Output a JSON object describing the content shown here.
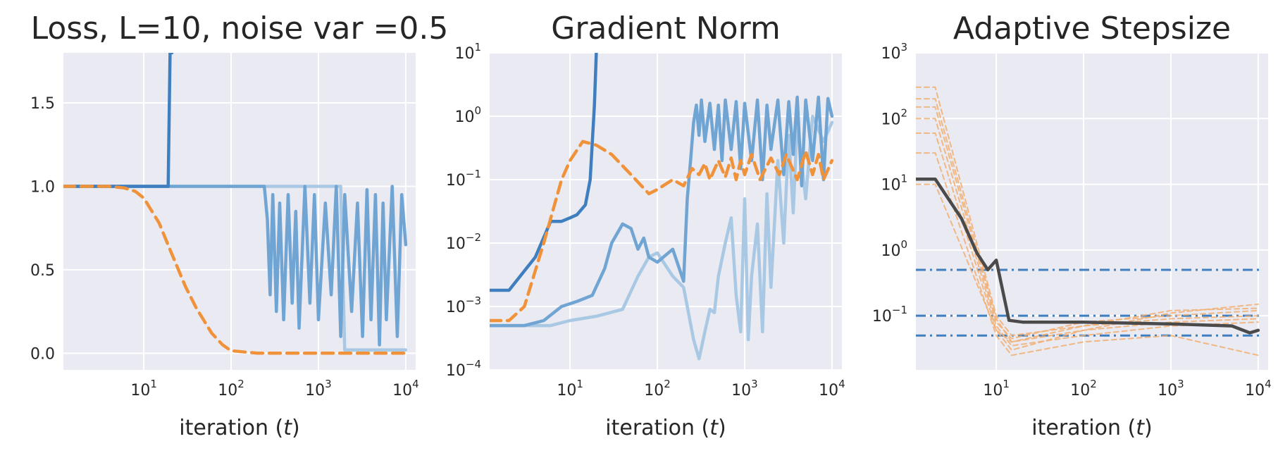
{
  "palette": {
    "background": "#EAEAF2",
    "grid": "#FFFFFF",
    "blue_dark": "#3F7FBF",
    "blue_mid": "#6FA4D3",
    "blue_light": "#A9C8E4",
    "orange": "#F0923A",
    "orange_light": "#F2AE70",
    "gray": "#4A4A4A"
  },
  "chart_data": [
    {
      "id": "loss",
      "type": "line",
      "title": "Loss, L=10, noise var =0.5",
      "xlabel": "iteration (t)",
      "xlabel_main": "iteration (",
      "xlabel_var": "t",
      "xlabel_end": ")",
      "xscale": "log",
      "yscale": "linear",
      "xlim": [
        1.2,
        13000
      ],
      "ylim": [
        -0.1,
        1.8
      ],
      "xticks": [
        {
          "base": "10",
          "exp": "1"
        },
        {
          "base": "10",
          "exp": "2"
        },
        {
          "base": "10",
          "exp": "3"
        },
        {
          "base": "10",
          "exp": "4"
        }
      ],
      "yticks": [
        "0.0",
        "0.5",
        "1.0",
        "1.5"
      ],
      "grid": true,
      "series": [
        {
          "style": "solid",
          "color_key": "blue_light",
          "x": [
            1.2,
            2,
            10,
            100,
            1000,
            1800,
            2000,
            2200,
            3000,
            5000,
            9000,
            10000
          ],
          "y": [
            1.0,
            1.0,
            1.0,
            1.0,
            1.0,
            1.0,
            0.02,
            0.02,
            0.02,
            0.02,
            0.02,
            0.02
          ]
        },
        {
          "style": "solid",
          "color_key": "blue_mid",
          "x": [
            1.2,
            10,
            100,
            200,
            240,
            260,
            280,
            300,
            330,
            360,
            400,
            450,
            500,
            550,
            600,
            700,
            800,
            900,
            1000,
            1200,
            1400,
            1600,
            1800,
            2000,
            2400,
            2800,
            3200,
            3600,
            4000,
            4500,
            5000,
            5500,
            6000,
            7000,
            8000,
            9000,
            10000
          ],
          "y": [
            1.0,
            1.0,
            1.0,
            1.0,
            1.0,
            0.8,
            0.35,
            0.95,
            0.25,
            0.9,
            0.2,
            0.95,
            0.3,
            0.85,
            0.15,
            1.0,
            0.3,
            0.95,
            0.2,
            0.9,
            0.35,
            1.0,
            0.1,
            0.95,
            0.25,
            0.9,
            0.1,
            0.98,
            0.2,
            0.95,
            0.05,
            0.9,
            0.2,
            1.0,
            0.1,
            0.95,
            0.65
          ]
        },
        {
          "style": "solid",
          "color_key": "blue_dark",
          "x": [
            1.2,
            5,
            10,
            17,
            19,
            20,
            21
          ],
          "y": [
            1.0,
            1.0,
            1.0,
            1.0,
            1.0,
            1.8,
            1.8
          ]
        },
        {
          "style": "dashed",
          "color_key": "orange",
          "x": [
            1.2,
            4,
            6,
            8,
            10,
            15,
            20,
            30,
            40,
            60,
            80,
            100,
            200,
            1000,
            10000
          ],
          "y": [
            1.0,
            1.0,
            0.99,
            0.97,
            0.93,
            0.78,
            0.62,
            0.4,
            0.27,
            0.12,
            0.05,
            0.015,
            0.0,
            0.0,
            0.0
          ]
        }
      ]
    },
    {
      "id": "gradnorm",
      "type": "line",
      "title": "Gradient Norm",
      "xlabel": "iteration (t)",
      "xlabel_main": "iteration (",
      "xlabel_var": "t",
      "xlabel_end": ")",
      "xscale": "log",
      "yscale": "log",
      "xlim": [
        1.2,
        13000
      ],
      "ylim": [
        0.0001,
        10
      ],
      "xticks": [
        {
          "base": "10",
          "exp": "1"
        },
        {
          "base": "10",
          "exp": "2"
        },
        {
          "base": "10",
          "exp": "3"
        },
        {
          "base": "10",
          "exp": "4"
        }
      ],
      "yticks": [
        {
          "base": "10",
          "exp": "−4"
        },
        {
          "base": "10",
          "exp": "−3"
        },
        {
          "base": "10",
          "exp": "−2"
        },
        {
          "base": "10",
          "exp": "−1"
        },
        {
          "base": "10",
          "exp": "0"
        },
        {
          "base": "10",
          "exp": "1"
        }
      ],
      "grid": true,
      "series": [
        {
          "style": "solid",
          "color_key": "blue_light",
          "x": [
            1.2,
            3,
            6,
            10,
            20,
            40,
            60,
            80,
            100,
            150,
            200,
            260,
            300,
            350,
            400,
            450,
            500,
            600,
            700,
            800,
            900,
            1000,
            1100,
            1200,
            1400,
            1600,
            1800,
            2000,
            2400,
            2800,
            3200,
            3600,
            4000,
            5000,
            6000,
            8000,
            10000
          ],
          "y": [
            0.0005,
            0.0005,
            0.0005,
            0.0006,
            0.0007,
            0.0009,
            0.003,
            0.006,
            0.007,
            0.003,
            0.002,
            0.0003,
            0.00015,
            0.0004,
            0.0009,
            0.0008,
            0.003,
            0.01,
            0.025,
            0.0015,
            0.0004,
            0.05,
            0.0003,
            0.003,
            0.02,
            0.0004,
            0.06,
            0.002,
            0.2,
            0.01,
            0.5,
            0.03,
            0.8,
            0.05,
            1.0,
            0.4,
            0.8
          ]
        },
        {
          "style": "solid",
          "color_key": "blue_mid",
          "x": [
            1.2,
            3,
            5,
            8,
            12,
            18,
            25,
            30,
            40,
            50,
            60,
            70,
            80,
            100,
            150,
            200,
            220,
            240,
            260,
            280,
            300,
            320,
            350,
            400,
            450,
            500,
            550,
            600,
            700,
            800,
            900,
            1000,
            1200,
            1400,
            1600,
            1800,
            2000,
            2400,
            2800,
            3200,
            3600,
            4000,
            4500,
            5000,
            6000,
            7000,
            8000,
            9000,
            10000
          ],
          "y": [
            0.0005,
            0.0005,
            0.0006,
            0.001,
            0.0012,
            0.0015,
            0.004,
            0.01,
            0.02,
            0.017,
            0.008,
            0.012,
            0.006,
            0.005,
            0.008,
            0.0025,
            0.05,
            0.2,
            0.8,
            1.5,
            0.5,
            1.8,
            0.4,
            1.6,
            0.3,
            1.5,
            0.2,
            1.8,
            0.3,
            1.7,
            0.15,
            1.6,
            0.2,
            1.8,
            0.1,
            1.5,
            0.3,
            1.8,
            0.12,
            1.7,
            0.25,
            2.0,
            0.08,
            1.8,
            0.2,
            2.0,
            0.1,
            1.9,
            1.0
          ]
        },
        {
          "style": "solid",
          "color_key": "blue_dark",
          "x": [
            1.2,
            2,
            4,
            6,
            8,
            10,
            12,
            15,
            17,
            19,
            20,
            21
          ],
          "y": [
            0.0018,
            0.0018,
            0.006,
            0.022,
            0.022,
            0.025,
            0.028,
            0.04,
            0.1,
            1.5,
            10,
            12
          ]
        },
        {
          "style": "dashed",
          "color_key": "orange",
          "x": [
            1.2,
            2,
            3,
            5,
            8,
            10,
            14,
            20,
            30,
            50,
            80,
            100,
            150,
            200,
            250,
            300,
            350,
            400,
            500,
            600,
            700,
            800,
            900,
            1000,
            1200,
            1500,
            2000,
            2500,
            3000,
            4000,
            5000,
            6000,
            7000,
            8000,
            10000
          ],
          "y": [
            0.0006,
            0.0006,
            0.001,
            0.01,
            0.1,
            0.2,
            0.4,
            0.35,
            0.25,
            0.12,
            0.06,
            0.07,
            0.1,
            0.08,
            0.15,
            0.12,
            0.18,
            0.1,
            0.2,
            0.11,
            0.22,
            0.1,
            0.2,
            0.12,
            0.25,
            0.1,
            0.22,
            0.12,
            0.25,
            0.1,
            0.28,
            0.12,
            0.25,
            0.1,
            0.2
          ]
        }
      ]
    },
    {
      "id": "stepsize",
      "type": "line",
      "title": "Adaptive Stepsize",
      "xlabel": "iteration (t)",
      "xlabel_main": "iteration (",
      "xlabel_var": "t",
      "xlabel_end": ")",
      "xscale": "log",
      "yscale": "log",
      "xlim": [
        1.2,
        13000
      ],
      "ylim": [
        0.015,
        1000
      ],
      "xticks": [
        {
          "base": "10",
          "exp": "1"
        },
        {
          "base": "10",
          "exp": "2"
        },
        {
          "base": "10",
          "exp": "3"
        },
        {
          "base": "10",
          "exp": "4"
        }
      ],
      "yticks": [
        {
          "base": "10",
          "exp": "−1"
        },
        {
          "base": "10",
          "exp": "0"
        },
        {
          "base": "10",
          "exp": "1"
        },
        {
          "base": "10",
          "exp": "2"
        },
        {
          "base": "10",
          "exp": "3"
        }
      ],
      "grid": true,
      "hlines": [
        {
          "style": "dashdot",
          "color_key": "blue_dark",
          "y": 0.5
        },
        {
          "style": "dashdot",
          "color_key": "blue_dark",
          "y": 0.1
        },
        {
          "style": "dashdot",
          "color_key": "blue_dark",
          "y": 0.05
        }
      ],
      "series": [
        {
          "style": "dashed-thin",
          "color_key": "orange_light",
          "x": [
            1.2,
            2,
            10,
            15,
            100,
            1000,
            10000
          ],
          "y": [
            300,
            300,
            0.1,
            0.05,
            0.07,
            0.09,
            0.1
          ]
        },
        {
          "style": "dashed-thin",
          "color_key": "orange_light",
          "x": [
            1.2,
            2,
            10,
            15,
            100,
            1000,
            10000
          ],
          "y": [
            200,
            200,
            0.09,
            0.04,
            0.06,
            0.08,
            0.09
          ]
        },
        {
          "style": "dashed-thin",
          "color_key": "orange_light",
          "x": [
            1.2,
            2,
            10,
            15,
            100,
            1000,
            10000
          ],
          "y": [
            150,
            150,
            0.08,
            0.045,
            0.08,
            0.1,
            0.12
          ]
        },
        {
          "style": "dashed-thin",
          "color_key": "orange_light",
          "x": [
            1.2,
            2,
            10,
            15,
            100,
            1000,
            10000
          ],
          "y": [
            100,
            100,
            0.07,
            0.035,
            0.05,
            0.07,
            0.08
          ]
        },
        {
          "style": "dashed-thin",
          "color_key": "orange_light",
          "x": [
            1.2,
            2,
            10,
            15,
            100,
            1000,
            10000
          ],
          "y": [
            60,
            60,
            0.06,
            0.03,
            0.06,
            0.11,
            0.15
          ]
        },
        {
          "style": "dashed-thin",
          "color_key": "orange_light",
          "x": [
            1.2,
            2,
            10,
            15,
            100,
            1000,
            10000
          ],
          "y": [
            30,
            30,
            0.05,
            0.025,
            0.04,
            0.05,
            0.025
          ]
        },
        {
          "style": "dashed-thin",
          "color_key": "orange_light",
          "x": [
            1.2,
            2,
            10,
            15,
            100,
            1000,
            10000
          ],
          "y": [
            10,
            10,
            0.06,
            0.04,
            0.07,
            0.12,
            0.13
          ]
        },
        {
          "style": "solid",
          "color_key": "gray",
          "x": [
            1.2,
            2,
            4,
            6,
            8,
            10,
            14,
            20,
            50,
            100,
            1000,
            5000,
            8000,
            10000
          ],
          "y": [
            12,
            12,
            3,
            0.9,
            0.5,
            0.7,
            0.085,
            0.08,
            0.08,
            0.08,
            0.075,
            0.07,
            0.055,
            0.06
          ]
        }
      ]
    }
  ]
}
